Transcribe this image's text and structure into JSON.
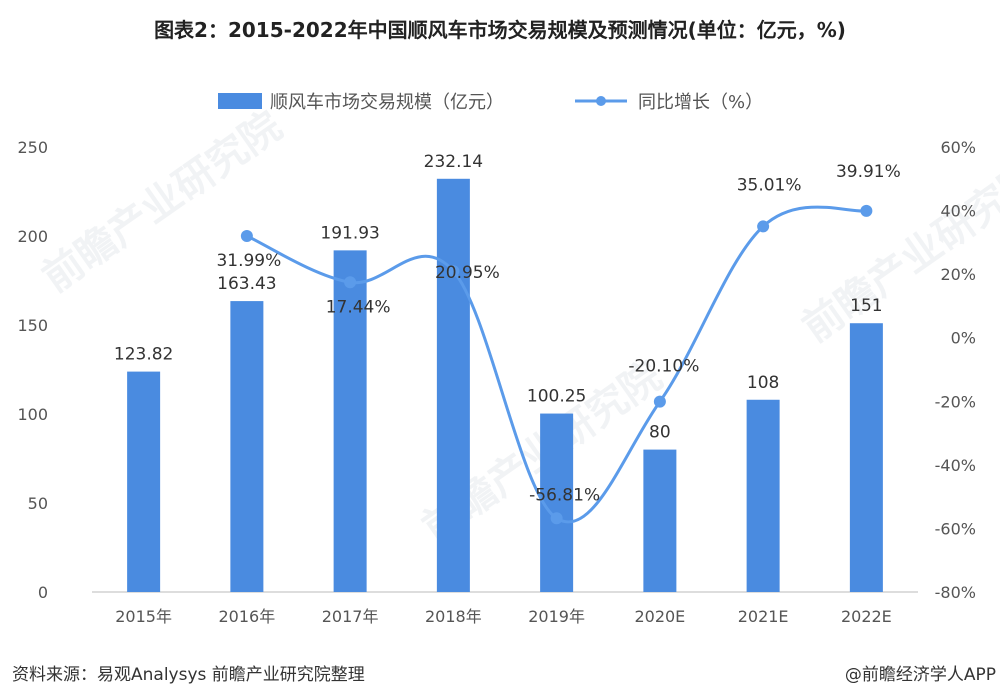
{
  "title": "图表2：2015-2022年中国顺风车市场交易规模及预测情况(单位：亿元，%)",
  "footer": {
    "source": "资料来源：易观Analysys 前瞻产业研究院整理",
    "brand": "@前瞻经济学人APP"
  },
  "watermark": "前瞻产业研究院",
  "colors": {
    "bar": "#4a8be0",
    "line": "#5b9bea",
    "axis_text": "#555555",
    "label": "#333333"
  },
  "chart_data": {
    "type": "bar",
    "title": "图表2：2015-2022年中国顺风车市场交易规模及预测情况(单位：亿元，%)",
    "categories": [
      "2015年",
      "2016年",
      "2017年",
      "2018年",
      "2019年",
      "2020E",
      "2021E",
      "2022E"
    ],
    "series": [
      {
        "name": "顺风车市场交易规模（亿元）",
        "type": "bar",
        "axis": "left",
        "values": [
          123.82,
          163.43,
          191.93,
          232.14,
          100.25,
          80,
          108,
          151
        ],
        "labels": [
          "123.82",
          "163.43",
          "191.93",
          "232.14",
          "100.25",
          "80",
          "108",
          "151"
        ]
      },
      {
        "name": "同比增长（%）",
        "type": "line",
        "axis": "right",
        "values": [
          null,
          31.99,
          17.44,
          20.95,
          -56.81,
          -20.1,
          35.01,
          39.91
        ],
        "labels": [
          "",
          "31.99%",
          "17.44%",
          "20.95%",
          "-56.81%",
          "-20.10%",
          "35.01%",
          "39.91%"
        ]
      }
    ],
    "y_left": {
      "min": 0,
      "max": 250,
      "ticks": [
        0,
        50,
        100,
        150,
        200,
        250
      ],
      "tick_labels": [
        "0",
        "50",
        "100",
        "150",
        "200",
        "250"
      ]
    },
    "y_right": {
      "min": -80,
      "max": 60,
      "ticks": [
        -80,
        -60,
        -40,
        -20,
        0,
        20,
        40,
        60
      ],
      "tick_labels": [
        "-80%",
        "-60%",
        "-40%",
        "-20%",
        "0%",
        "20%",
        "40%",
        "60%"
      ]
    },
    "legend": "top-center",
    "grid": false
  }
}
